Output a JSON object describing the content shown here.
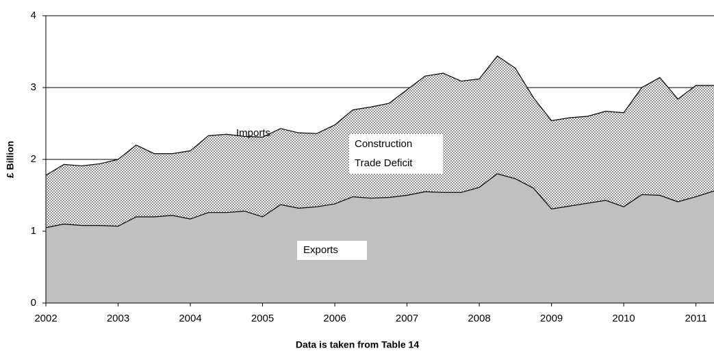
{
  "chart_data": {
    "type": "area",
    "ylabel": "£ Billion",
    "xlabel": "Data is taken from Table 14",
    "annotations": [
      "Imports",
      "Construction",
      "Trade Deficit",
      "Exports"
    ],
    "x": [
      2002,
      2002.25,
      2002.5,
      2002.75,
      2003,
      2003.25,
      2003.5,
      2003.75,
      2004,
      2004.25,
      2004.5,
      2004.75,
      2005,
      2005.25,
      2005.5,
      2005.75,
      2006,
      2006.25,
      2006.5,
      2006.75,
      2007,
      2007.25,
      2007.5,
      2007.75,
      2008,
      2008.25,
      2008.5,
      2008.75,
      2009,
      2009.25,
      2009.5,
      2009.75,
      2010,
      2010.25,
      2010.5,
      2010.75,
      2011,
      2011.25
    ],
    "series": [
      {
        "name": "Exports",
        "color": "#c0c0c0",
        "values": [
          1.05,
          1.1,
          1.08,
          1.08,
          1.07,
          1.2,
          1.2,
          1.22,
          1.17,
          1.26,
          1.26,
          1.28,
          1.2,
          1.37,
          1.32,
          1.34,
          1.38,
          1.48,
          1.46,
          1.47,
          1.5,
          1.55,
          1.54,
          1.54,
          1.61,
          1.8,
          1.73,
          1.6,
          1.31,
          1.35,
          1.39,
          1.43,
          1.34,
          1.51,
          1.5,
          1.41,
          1.48,
          1.56
        ]
      },
      {
        "name": "Imports",
        "color": "#8c8c8c",
        "values": [
          1.78,
          1.93,
          1.91,
          1.94,
          2.0,
          2.2,
          2.08,
          2.08,
          2.12,
          2.33,
          2.35,
          2.32,
          2.31,
          2.43,
          2.37,
          2.36,
          2.48,
          2.69,
          2.73,
          2.78,
          2.97,
          3.16,
          3.2,
          3.09,
          3.12,
          3.44,
          3.27,
          2.86,
          2.54,
          2.58,
          2.6,
          2.67,
          2.65,
          3.0,
          3.14,
          2.84,
          3.03,
          3.03
        ]
      }
    ],
    "xlim": [
      2002,
      2011.25
    ],
    "xticks": [
      2002,
      2003,
      2004,
      2005,
      2006,
      2007,
      2008,
      2009,
      2010,
      2011
    ],
    "ylim": [
      0,
      4
    ],
    "yticks": [
      0,
      1,
      2,
      3,
      4
    ],
    "grid": true
  }
}
